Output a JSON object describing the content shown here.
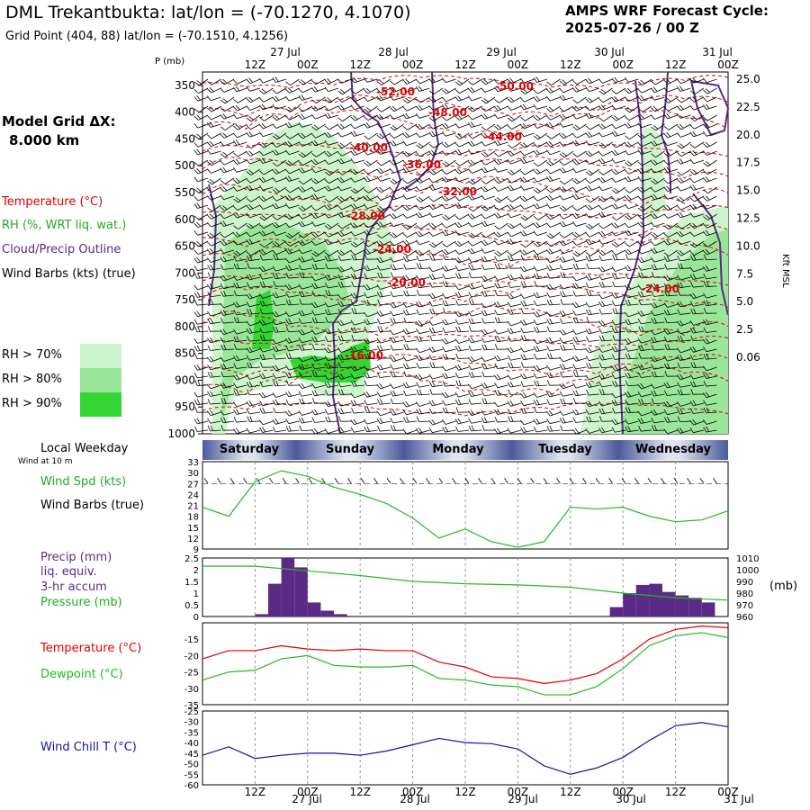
{
  "header": {
    "title": "DML Trekantbukta:  lat/lon = (-70.1270, 4.1070)",
    "subtitle": "Grid Point (404, 88) lat/lon = (-70.1510, 4.1256)",
    "cycle_line1": "AMPS WRF Forecast Cycle:",
    "cycle_line2": "2025-07-26 / 00  Z"
  },
  "legend": {
    "grid_line1": "Model Grid ΔX:",
    "grid_line2": "8.000 km",
    "temperature": "Temperature (°C)",
    "rh": "RH (%, WRT liq. wat.)",
    "cloud": "Cloud/Precip Outline",
    "wind_barbs": "Wind Barbs (kts) (true)",
    "rh70": "RH > 70%",
    "rh80": "RH > 80%",
    "rh90": "RH > 90%",
    "local_weekday": "Local Weekday",
    "wind_10m": "Wind at 10 m",
    "wind_spd": "Wind Spd (kts)",
    "wind_barbs2": "Wind Barbs (true)",
    "precip1": "Precip (mm)",
    "precip2": "liq. equiv.",
    "precip3": "3-hr accum",
    "pressure": "Pressure (mb)",
    "pressure_unit": "(mb)",
    "temp2": "Temperature (°C)",
    "dewpoint": "Dewpoint (°C)",
    "windchill": "Wind Chill T (°C)",
    "p_unit": "P (mb)",
    "kft": "Kft MSL"
  },
  "colors": {
    "temperature": "#dd0000",
    "rh_label": "#22aa22",
    "cloud": "#5b2a86",
    "rh70": "#ccf5cc",
    "rh80": "#99e699",
    "rh90": "#33d633",
    "dewpoint": "#22bb22",
    "windchill": "#1111aa",
    "precip": "#5b2a86"
  },
  "time_axis": {
    "top_dates": [
      "27 Jul",
      "28 Jul",
      "29 Jul",
      "30 Jul",
      "31 Jul"
    ],
    "ticks": [
      "12Z",
      "00Z",
      "12Z",
      "00Z",
      "12Z",
      "00Z",
      "12Z",
      "00Z",
      "12Z",
      "00Z"
    ],
    "weekdays": [
      "Saturday",
      "Sunday",
      "Monday",
      "Tuesday",
      "Wednesday"
    ]
  },
  "chart_data": [
    {
      "type": "heatmap",
      "title": "",
      "ylabel": "P (mb)",
      "y2label": "Kft MSL",
      "pressure_ticks": [
        350,
        400,
        450,
        500,
        550,
        600,
        650,
        700,
        750,
        800,
        850,
        900,
        950,
        1000
      ],
      "height_ticks": [
        "25.0",
        "22.5",
        "20.0",
        "17.5",
        "15.0",
        "12.5",
        "10.0",
        "7.5",
        "5.0",
        "2.5",
        "0.06"
      ],
      "temperature_labels": [
        "-52.00",
        "-50.00",
        "-48.00",
        "-44.00",
        "-40.00",
        "-36.00",
        "-32.00",
        "-28.00",
        "-24.00",
        "-20.00",
        "-24.00",
        "-16.00"
      ],
      "rh_thresholds": [
        "70%",
        "80%",
        "90%"
      ]
    },
    {
      "type": "line",
      "title": "",
      "ylabel": "Wind Spd (kts)",
      "ylim": [
        9,
        33
      ],
      "yticks": [
        9,
        12,
        15,
        18,
        21,
        24,
        27,
        30,
        33
      ],
      "x_hours": [
        0,
        6,
        12,
        18,
        24,
        30,
        36,
        42,
        48,
        54,
        60,
        66,
        72,
        78,
        84,
        90,
        96,
        102,
        108,
        114,
        120
      ],
      "series": [
        {
          "name": "Wind Spd (kts)",
          "values": [
            20.5,
            18,
            27.5,
            30.5,
            29,
            26,
            24,
            21.5,
            17.5,
            12,
            14.5,
            11,
            9.5,
            11,
            20.5,
            20,
            20.5,
            18,
            16.5,
            17,
            19.5
          ]
        }
      ]
    },
    {
      "type": "bar",
      "title": "",
      "ylabel": "Precip (mm)",
      "ylim": [
        0,
        2.5
      ],
      "yticks": [
        0.0,
        0.5,
        1.0,
        1.5,
        2.0,
        2.5
      ],
      "y2ticks": [
        960,
        970,
        980,
        990,
        1000,
        1010
      ],
      "x_hours": [
        3,
        6,
        9,
        12,
        15,
        18,
        21,
        24,
        27,
        30,
        33,
        36,
        39,
        42,
        45,
        48,
        51,
        54,
        57,
        60,
        63,
        66,
        69,
        72,
        75,
        78,
        81,
        84,
        87,
        90,
        93,
        96,
        99,
        102,
        105,
        108,
        111,
        114,
        117,
        120
      ],
      "values": [
        0,
        0,
        0,
        0,
        0.1,
        1.4,
        2.5,
        2.1,
        0.6,
        0.25,
        0.1,
        0,
        0,
        0,
        0,
        0,
        0,
        0,
        0,
        0,
        0,
        0,
        0,
        0,
        0,
        0,
        0,
        0,
        0,
        0,
        0,
        0.4,
        1.0,
        1.35,
        1.4,
        1.05,
        0.9,
        0.8,
        0.6,
        0
      ],
      "series": [
        {
          "name": "Pressure (mb)",
          "x_hours": [
            0,
            12,
            24,
            36,
            48,
            60,
            72,
            84,
            96,
            108,
            120
          ],
          "values": [
            1003,
            1003,
            999,
            995,
            990,
            988,
            987,
            985,
            980,
            976,
            974
          ]
        }
      ]
    },
    {
      "type": "line",
      "title": "",
      "ylim": [
        -35,
        -10
      ],
      "yticks": [
        -15,
        -20,
        -25,
        -30,
        -35
      ],
      "x_hours": [
        0,
        6,
        12,
        18,
        24,
        30,
        36,
        42,
        48,
        54,
        60,
        66,
        72,
        78,
        84,
        90,
        96,
        102,
        108,
        114,
        120
      ],
      "series": [
        {
          "name": "Temperature (°C)",
          "values": [
            -21,
            -18.5,
            -18.5,
            -17,
            -18,
            -18.5,
            -18,
            -18.5,
            -18.5,
            -22,
            -23.5,
            -26.5,
            -27,
            -28.5,
            -27.5,
            -25.5,
            -21,
            -15,
            -12,
            -11,
            -11.5
          ]
        },
        {
          "name": "Dewpoint (°C)",
          "values": [
            -27.5,
            -25,
            -24.5,
            -21,
            -20,
            -23,
            -23.5,
            -23.5,
            -23,
            -27,
            -27.5,
            -29,
            -29.5,
            -32,
            -32,
            -29.5,
            -24,
            -17,
            -14,
            -13,
            -14.5
          ]
        }
      ]
    },
    {
      "type": "line",
      "title": "",
      "ylabel": "Wind Chill T (°C)",
      "ylim": [
        -60,
        -25
      ],
      "yticks": [
        -25,
        -30,
        -35,
        -40,
        -45,
        -50,
        -55,
        -60
      ],
      "x_hours": [
        0,
        6,
        12,
        18,
        24,
        30,
        36,
        42,
        48,
        54,
        60,
        66,
        72,
        78,
        84,
        90,
        96,
        102,
        108,
        114,
        120
      ],
      "series": [
        {
          "name": "Wind Chill T (°C)",
          "values": [
            -46,
            -42,
            -47.5,
            -46,
            -45,
            -45,
            -46,
            -44,
            -41,
            -38,
            -40,
            -40.5,
            -43,
            -51,
            -55,
            -52,
            -47,
            -39,
            -32,
            -30.5,
            -32.5
          ]
        }
      ]
    }
  ]
}
